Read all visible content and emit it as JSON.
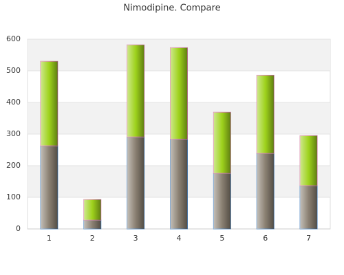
{
  "chart_data": {
    "type": "stacked_bar",
    "title": "Nimodipine. Compare",
    "categories": [
      "1",
      "2",
      "3",
      "4",
      "5",
      "6",
      "7"
    ],
    "series": [
      {
        "color": "#8a8072",
        "edge": "#5b8fc6",
        "values": [
          263,
          28,
          291,
          284,
          176,
          239,
          137
        ]
      },
      {
        "color": "#9ed21c",
        "edge": "#d88aa8",
        "values": [
          267,
          65,
          291,
          289,
          193,
          247,
          158
        ]
      }
    ],
    "ylim": [
      0,
      600
    ],
    "yticks": [
      0,
      100,
      200,
      300,
      400,
      500,
      600
    ],
    "grid": true
  }
}
